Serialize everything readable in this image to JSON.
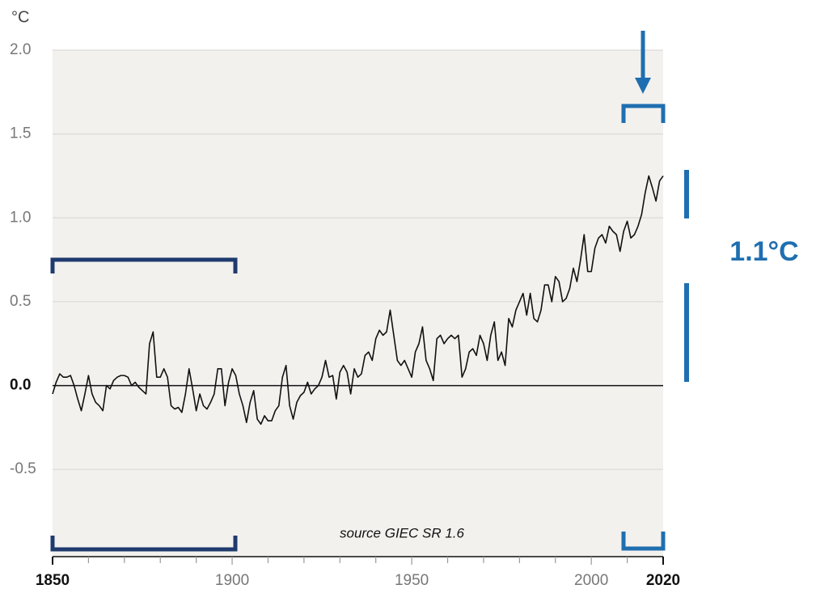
{
  "chart_data": {
    "type": "line",
    "unit_label": "°C",
    "annotation": "1.1°C",
    "source": "source GIEC SR 1.6",
    "color": "#111111",
    "grid": true,
    "xlim": [
      1850,
      2020
    ],
    "ylim": [
      -1.02,
      2
    ],
    "xticks": [
      1850,
      1900,
      1950,
      2000,
      2020
    ],
    "xminor_ticks": [
      1860,
      1870,
      1880,
      1890,
      1910,
      1920,
      1930,
      1940,
      1960,
      1970,
      1980,
      1990,
      2010
    ],
    "yticks": [
      {
        "value": 2,
        "label": "2.0"
      },
      1.5,
      {
        "value": 1,
        "label": "1.0"
      },
      0.5,
      {
        "value": 0,
        "label": "0.0"
      },
      -0.5
    ],
    "x": [
      1850,
      1851,
      1852,
      1853,
      1854,
      1855,
      1856,
      1857,
      1858,
      1859,
      1860,
      1861,
      1862,
      1863,
      1864,
      1865,
      1866,
      1867,
      1868,
      1869,
      1870,
      1871,
      1872,
      1873,
      1874,
      1875,
      1876,
      1877,
      1878,
      1879,
      1880,
      1881,
      1882,
      1883,
      1884,
      1885,
      1886,
      1887,
      1888,
      1889,
      1890,
      1891,
      1892,
      1893,
      1894,
      1895,
      1896,
      1897,
      1898,
      1899,
      1900,
      1901,
      1902,
      1903,
      1904,
      1905,
      1906,
      1907,
      1908,
      1909,
      1910,
      1911,
      1912,
      1913,
      1914,
      1915,
      1916,
      1917,
      1918,
      1919,
      1920,
      1921,
      1922,
      1923,
      1924,
      1925,
      1926,
      1927,
      1928,
      1929,
      1930,
      1931,
      1932,
      1933,
      1934,
      1935,
      1936,
      1937,
      1938,
      1939,
      1940,
      1941,
      1942,
      1943,
      1944,
      1945,
      1946,
      1947,
      1948,
      1949,
      1950,
      1951,
      1952,
      1953,
      1954,
      1955,
      1956,
      1957,
      1958,
      1959,
      1960,
      1961,
      1962,
      1963,
      1964,
      1965,
      1966,
      1967,
      1968,
      1969,
      1970,
      1971,
      1972,
      1973,
      1974,
      1975,
      1976,
      1977,
      1978,
      1979,
      1980,
      1981,
      1982,
      1983,
      1984,
      1985,
      1986,
      1987,
      1988,
      1989,
      1990,
      1991,
      1992,
      1993,
      1994,
      1995,
      1996,
      1997,
      1998,
      1999,
      2000,
      2001,
      2002,
      2003,
      2004,
      2005,
      2006,
      2007,
      2008,
      2009,
      2010,
      2011,
      2012,
      2013,
      2014,
      2015,
      2016,
      2017,
      2018,
      2019,
      2020
    ],
    "values": [
      -0.05,
      0.02,
      0.07,
      0.05,
      0.05,
      0.06,
      0.0,
      -0.08,
      -0.15,
      -0.05,
      0.06,
      -0.05,
      -0.1,
      -0.12,
      -0.15,
      0.0,
      -0.02,
      0.03,
      0.05,
      0.06,
      0.06,
      0.05,
      0.0,
      0.02,
      -0.01,
      -0.03,
      -0.05,
      0.25,
      0.32,
      0.05,
      0.05,
      0.1,
      0.05,
      -0.12,
      -0.14,
      -0.13,
      -0.16,
      -0.05,
      0.1,
      -0.02,
      -0.15,
      -0.05,
      -0.12,
      -0.14,
      -0.1,
      -0.05,
      0.1,
      0.1,
      -0.12,
      0.02,
      0.1,
      0.06,
      -0.05,
      -0.12,
      -0.22,
      -0.1,
      -0.03,
      -0.2,
      -0.23,
      -0.18,
      -0.21,
      -0.21,
      -0.15,
      -0.12,
      0.05,
      0.12,
      -0.12,
      -0.2,
      -0.1,
      -0.06,
      -0.04,
      0.02,
      -0.05,
      -0.02,
      0.0,
      0.05,
      0.15,
      0.05,
      0.06,
      -0.08,
      0.08,
      0.12,
      0.08,
      -0.05,
      0.1,
      0.05,
      0.07,
      0.18,
      0.2,
      0.15,
      0.28,
      0.33,
      0.3,
      0.32,
      0.45,
      0.3,
      0.15,
      0.12,
      0.15,
      0.1,
      0.05,
      0.2,
      0.25,
      0.35,
      0.15,
      0.1,
      0.03,
      0.28,
      0.3,
      0.25,
      0.28,
      0.3,
      0.28,
      0.3,
      0.05,
      0.1,
      0.2,
      0.22,
      0.18,
      0.3,
      0.25,
      0.15,
      0.3,
      0.38,
      0.15,
      0.2,
      0.12,
      0.4,
      0.35,
      0.45,
      0.5,
      0.55,
      0.42,
      0.55,
      0.4,
      0.38,
      0.45,
      0.6,
      0.6,
      0.5,
      0.65,
      0.62,
      0.5,
      0.52,
      0.58,
      0.7,
      0.62,
      0.75,
      0.9,
      0.68,
      0.68,
      0.82,
      0.88,
      0.9,
      0.85,
      0.95,
      0.92,
      0.9,
      0.8,
      0.92,
      0.98,
      0.88,
      0.9,
      0.95,
      1.02,
      1.15,
      1.25,
      1.18,
      1.1,
      1.22,
      1.25
    ]
  }
}
